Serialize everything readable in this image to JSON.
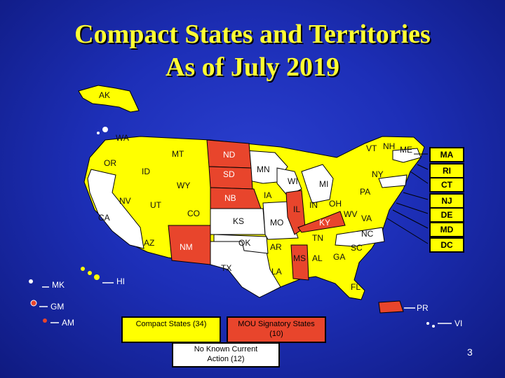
{
  "title": {
    "line1": "Compact States and Territories",
    "line2": "As of July 2019"
  },
  "colors": {
    "compact": "#ffff00",
    "mou": "#e8452c",
    "no_action": "#ffffff",
    "background": "#1d2fb8",
    "title_text": "#ffff33"
  },
  "state_labels": [
    "AK",
    "WA",
    "OR",
    "ID",
    "MT",
    "ND",
    "MN",
    "WI",
    "MI",
    "VT",
    "NH",
    "ME",
    "NY",
    "PA",
    "NV",
    "CA",
    "UT",
    "WY",
    "SD",
    "IA",
    "IL",
    "IN",
    "OH",
    "WV",
    "VA",
    "CO",
    "NB",
    "KS",
    "MO",
    "KY",
    "AZ",
    "NM",
    "OK",
    "AR",
    "TN",
    "NC",
    "SC",
    "TX",
    "MS",
    "AL",
    "GA",
    "LA",
    "FL"
  ],
  "northeast_boxes": [
    "MA",
    "RI",
    "CT",
    "NJ",
    "DE",
    "MD",
    "DC"
  ],
  "territories": [
    "MK",
    "HI",
    "GM",
    "AM",
    "PR",
    "VI"
  ],
  "legend": {
    "compact": "Compact States (34)",
    "mou": "MOU Signatory States (10)",
    "no_action": "No Known Current Action (12)"
  },
  "page_number": "3"
}
